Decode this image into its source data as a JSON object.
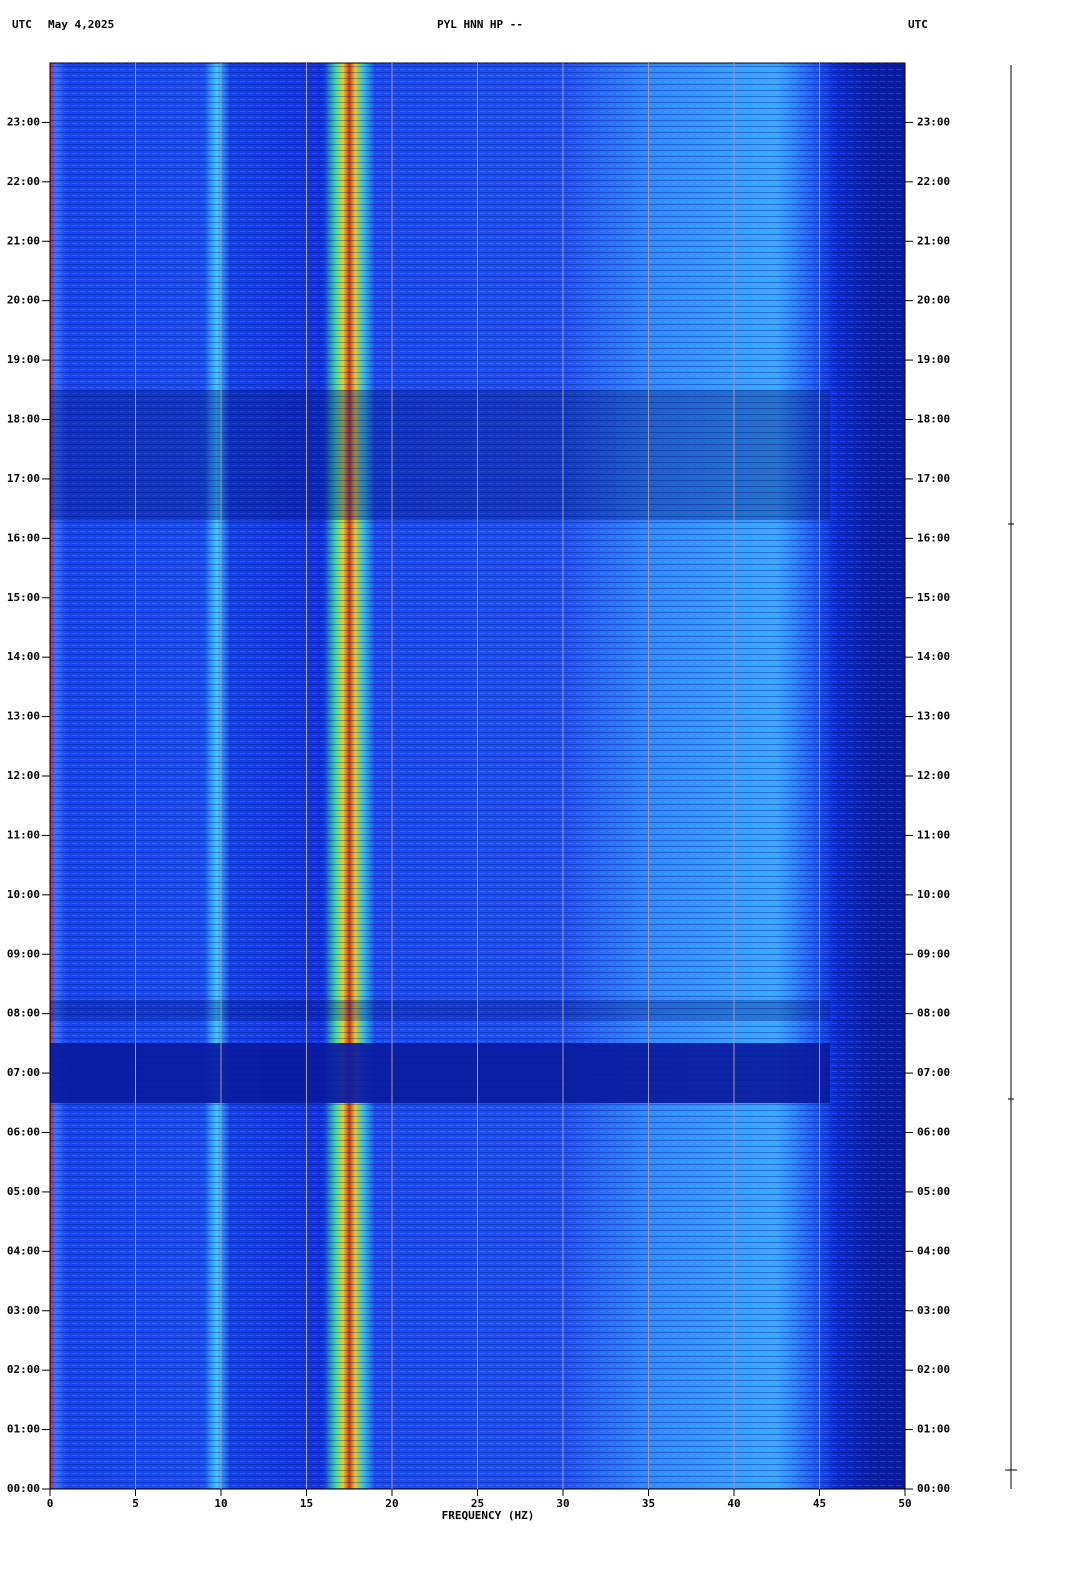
{
  "chart_data": {
    "type": "spectrogram",
    "header_left_zone": "UTC",
    "date": "May 4,2025",
    "title": "PYL HNN HP --",
    "header_right_zone": "UTC",
    "xlabel": "FREQUENCY (HZ)",
    "xlim": [
      0,
      50
    ],
    "xticks": [
      0,
      5,
      10,
      15,
      20,
      25,
      30,
      35,
      40,
      45,
      50
    ],
    "ylim": [
      0,
      24
    ],
    "yticks": [
      {
        "value": 0,
        "label": "00:00"
      },
      {
        "value": 1,
        "label": "01:00"
      },
      {
        "value": 2,
        "label": "02:00"
      },
      {
        "value": 3,
        "label": "03:00"
      },
      {
        "value": 4,
        "label": "04:00"
      },
      {
        "value": 5,
        "label": "05:00"
      },
      {
        "value": 6,
        "label": "06:00"
      },
      {
        "value": 7,
        "label": "07:00"
      },
      {
        "value": 8,
        "label": "08:00"
      },
      {
        "value": 9,
        "label": "09:00"
      },
      {
        "value": 10,
        "label": "10:00"
      },
      {
        "value": 11,
        "label": "11:00"
      },
      {
        "value": 12,
        "label": "12:00"
      },
      {
        "value": 13,
        "label": "13:00"
      },
      {
        "value": 14,
        "label": "14:00"
      },
      {
        "value": 15,
        "label": "15:00"
      },
      {
        "value": 16,
        "label": "16:00"
      },
      {
        "value": 17,
        "label": "17:00"
      },
      {
        "value": 18,
        "label": "18:00"
      },
      {
        "value": 19,
        "label": "19:00"
      },
      {
        "value": 20,
        "label": "20:00"
      },
      {
        "value": 21,
        "label": "21:00"
      },
      {
        "value": 22,
        "label": "22:00"
      },
      {
        "value": 23,
        "label": "23:00"
      }
    ],
    "grid": true,
    "grid_color": "#a0a0a0"
  }
}
